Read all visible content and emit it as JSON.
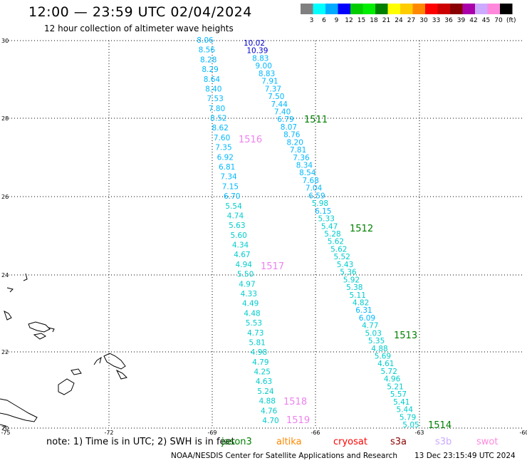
{
  "header": {
    "title": "12:00 — 23:59 UTC 02/04/2024",
    "subtitle": "12 hour collection of altimeter wave heights"
  },
  "legend": {
    "unit": "(ft)",
    "bins": [
      {
        "label": "3",
        "color": "#808080"
      },
      {
        "label": "6",
        "color": "#00ffff"
      },
      {
        "label": "9",
        "color": "#00aaff"
      },
      {
        "label": "12",
        "color": "#0000ff"
      },
      {
        "label": "15",
        "color": "#00cc00"
      },
      {
        "label": "18",
        "color": "#00ee00"
      },
      {
        "label": "21",
        "color": "#008000"
      },
      {
        "label": "24",
        "color": "#ffff00"
      },
      {
        "label": "27",
        "color": "#ffcc00"
      },
      {
        "label": "30",
        "color": "#ff8800"
      },
      {
        "label": "33",
        "color": "#ff0000"
      },
      {
        "label": "36",
        "color": "#cc0000"
      },
      {
        "label": "39",
        "color": "#880000"
      },
      {
        "label": "42",
        "color": "#aa00aa"
      },
      {
        "label": "45",
        "color": "#ccaaff"
      },
      {
        "label": "70",
        "color": "#ff88dd"
      },
      {
        "label": "",
        "color": "#000000"
      }
    ]
  },
  "axes": {
    "lat_ticks": [
      "30",
      "28",
      "26",
      "24",
      "22",
      "20"
    ],
    "lon_ticks": [
      "-75",
      "-72",
      "-69",
      "-66",
      "-63",
      "-60"
    ]
  },
  "colors": {
    "swh_cyan": "#00b8ff",
    "swh_blue": "#0000cc",
    "swh_teal": "#00cccc",
    "time_green": "#008000",
    "time_pink": "#ee82ee"
  },
  "tracks": {
    "left": [
      {
        "v": "8.06",
        "c": "#00b8ff"
      },
      {
        "v": "8.56",
        "c": "#00b8ff"
      },
      {
        "v": "8.28",
        "c": "#00b8ff"
      },
      {
        "v": "8.29",
        "c": "#00b8ff"
      },
      {
        "v": "8.64",
        "c": "#00b8ff"
      },
      {
        "v": "8.40",
        "c": "#00b8ff"
      },
      {
        "v": "7.53",
        "c": "#00b8ff"
      },
      {
        "v": "7.80",
        "c": "#00b8ff"
      },
      {
        "v": "8.52",
        "c": "#00b8ff"
      },
      {
        "v": "8.62",
        "c": "#00b8ff"
      },
      {
        "v": "7.60",
        "c": "#00b8ff"
      },
      {
        "v": "7.35",
        "c": "#00b8ff"
      },
      {
        "v": "6.92",
        "c": "#00b8ff"
      },
      {
        "v": "6.81",
        "c": "#00b8ff"
      },
      {
        "v": "7.34",
        "c": "#00b8ff"
      },
      {
        "v": "7.15",
        "c": "#00b8ff"
      },
      {
        "v": "6.70",
        "c": "#00b8ff"
      },
      {
        "v": "5.54",
        "c": "#00cccc"
      },
      {
        "v": "4.74",
        "c": "#00cccc"
      },
      {
        "v": "5.63",
        "c": "#00cccc"
      },
      {
        "v": "5.60",
        "c": "#00cccc"
      },
      {
        "v": "4.34",
        "c": "#00cccc"
      },
      {
        "v": "4.67",
        "c": "#00cccc"
      },
      {
        "v": "4.94",
        "c": "#00cccc"
      },
      {
        "v": "5.50",
        "c": "#00cccc"
      },
      {
        "v": "4.97",
        "c": "#00cccc"
      },
      {
        "v": "4.33",
        "c": "#00cccc"
      },
      {
        "v": "4.49",
        "c": "#00cccc"
      },
      {
        "v": "4.48",
        "c": "#00cccc"
      },
      {
        "v": "5.53",
        "c": "#00cccc"
      },
      {
        "v": "4.73",
        "c": "#00cccc"
      },
      {
        "v": "5.81",
        "c": "#00cccc"
      },
      {
        "v": "4.98",
        "c": "#00cccc"
      },
      {
        "v": "4.79",
        "c": "#00cccc"
      },
      {
        "v": "4.25",
        "c": "#00cccc"
      },
      {
        "v": "4.63",
        "c": "#00cccc"
      },
      {
        "v": "5.24",
        "c": "#00cccc"
      },
      {
        "v": "4.88",
        "c": "#00cccc"
      },
      {
        "v": "4.76",
        "c": "#00cccc"
      },
      {
        "v": "4.70",
        "c": "#00cccc"
      }
    ],
    "right": [
      {
        "v": "10.02",
        "c": "#0000cc"
      },
      {
        "v": "10.39",
        "c": "#0000cc"
      },
      {
        "v": "8.83",
        "c": "#00b8ff"
      },
      {
        "v": "9.00",
        "c": "#00b8ff"
      },
      {
        "v": "8.83",
        "c": "#00b8ff"
      },
      {
        "v": "7.91",
        "c": "#00b8ff"
      },
      {
        "v": "7.37",
        "c": "#00b8ff"
      },
      {
        "v": "7.50",
        "c": "#00b8ff"
      },
      {
        "v": "7.44",
        "c": "#00b8ff"
      },
      {
        "v": "7.40",
        "c": "#00b8ff"
      },
      {
        "v": "6.79",
        "c": "#00b8ff"
      },
      {
        "v": "8.07",
        "c": "#00b8ff"
      },
      {
        "v": "8.76",
        "c": "#00b8ff"
      },
      {
        "v": "8.20",
        "c": "#00b8ff"
      },
      {
        "v": "7.81",
        "c": "#00b8ff"
      },
      {
        "v": "7.36",
        "c": "#00b8ff"
      },
      {
        "v": "8.34",
        "c": "#00b8ff"
      },
      {
        "v": "8.54",
        "c": "#00b8ff"
      },
      {
        "v": "7.68",
        "c": "#00b8ff"
      },
      {
        "v": "7.04",
        "c": "#00b8ff"
      },
      {
        "v": "6.59",
        "c": "#00b8ff"
      },
      {
        "v": "5.98",
        "c": "#00cccc"
      },
      {
        "v": "6.15",
        "c": "#00b8ff"
      },
      {
        "v": "5.33",
        "c": "#00cccc"
      },
      {
        "v": "5.47",
        "c": "#00cccc"
      },
      {
        "v": "5.28",
        "c": "#00cccc"
      },
      {
        "v": "5.62",
        "c": "#00cccc"
      },
      {
        "v": "5.62",
        "c": "#00cccc"
      },
      {
        "v": "5.52",
        "c": "#00cccc"
      },
      {
        "v": "5.43",
        "c": "#00cccc"
      },
      {
        "v": "5.36",
        "c": "#00cccc"
      },
      {
        "v": "5.92",
        "c": "#00cccc"
      },
      {
        "v": "5.38",
        "c": "#00cccc"
      },
      {
        "v": "5.11",
        "c": "#00cccc"
      },
      {
        "v": "4.82",
        "c": "#00cccc"
      },
      {
        "v": "6.31",
        "c": "#00b8ff"
      },
      {
        "v": "6.09",
        "c": "#00b8ff"
      },
      {
        "v": "4.77",
        "c": "#00cccc"
      },
      {
        "v": "5.03",
        "c": "#00cccc"
      },
      {
        "v": "5.35",
        "c": "#00cccc"
      },
      {
        "v": "4.88",
        "c": "#00cccc"
      },
      {
        "v": "5.69",
        "c": "#00cccc"
      },
      {
        "v": "4.61",
        "c": "#00cccc"
      },
      {
        "v": "5.72",
        "c": "#00cccc"
      },
      {
        "v": "4.96",
        "c": "#00cccc"
      },
      {
        "v": "5.21",
        "c": "#00cccc"
      },
      {
        "v": "5.57",
        "c": "#00cccc"
      },
      {
        "v": "5.41",
        "c": "#00cccc"
      },
      {
        "v": "5.44",
        "c": "#00cccc"
      },
      {
        "v": "5.79",
        "c": "#00cccc"
      },
      {
        "v": "5.05",
        "c": "#00cccc"
      }
    ]
  },
  "time_labels": [
    {
      "t": "1511",
      "c": "#008000"
    },
    {
      "t": "1512",
      "c": "#008000"
    },
    {
      "t": "1513",
      "c": "#008000"
    },
    {
      "t": "1514",
      "c": "#008000"
    },
    {
      "t": "1516",
      "c": "#ee82ee"
    },
    {
      "t": "1517",
      "c": "#ee82ee"
    },
    {
      "t": "1518",
      "c": "#ee82ee"
    },
    {
      "t": "1519",
      "c": "#ee82ee"
    }
  ],
  "footer": {
    "note": "note:  1) Time is in UTC; 2) SWH is in feet",
    "missions": [
      {
        "name": "jason3",
        "color": "#008000"
      },
      {
        "name": "altika",
        "color": "#ff8800"
      },
      {
        "name": "cryosat",
        "color": "#ff0000"
      },
      {
        "name": "s3a",
        "color": "#880000"
      },
      {
        "name": "s3b",
        "color": "#ccaaff"
      },
      {
        "name": "swot",
        "color": "#ff88dd"
      }
    ],
    "credit": "NOAA/NESDIS Center for Satellite Applications and Research",
    "timestamp": "13 Dec 23:15:49 UTC 2024"
  }
}
